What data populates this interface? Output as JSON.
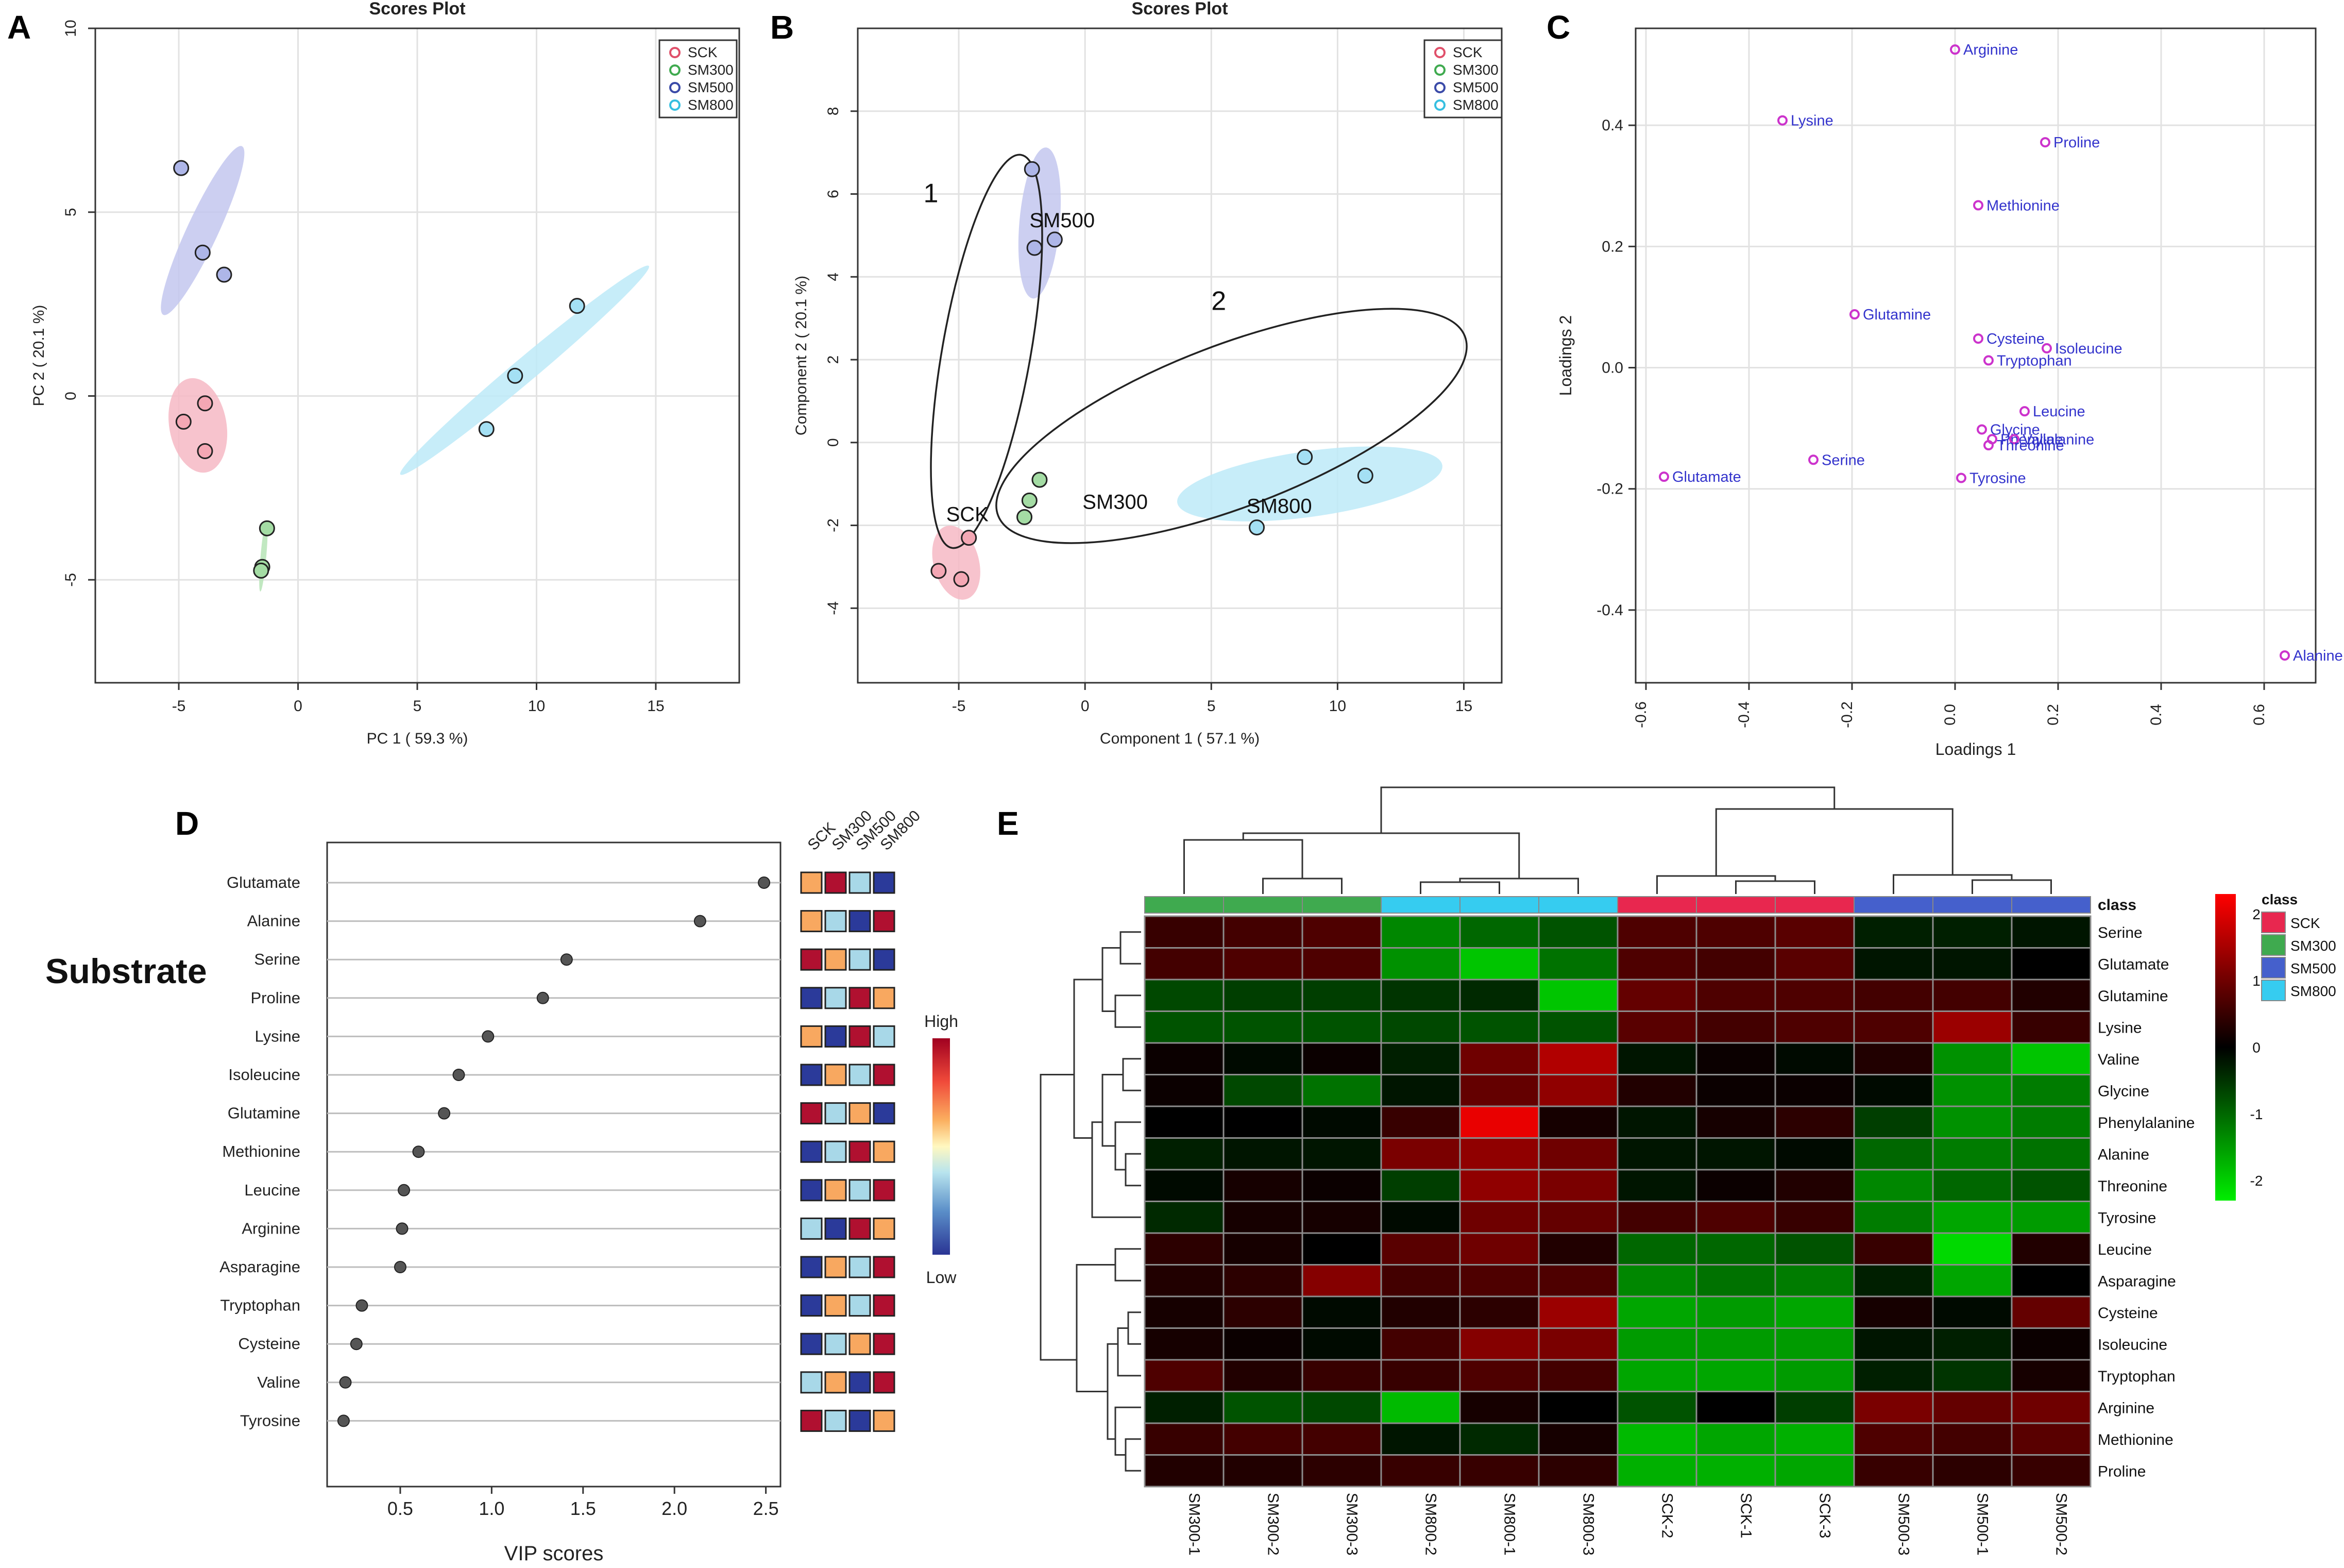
{
  "panel_labels": [
    "A",
    "B",
    "C",
    "D",
    "E"
  ],
  "legend_groups": [
    "SCK",
    "SM300",
    "SM500",
    "SM800"
  ],
  "colors": {
    "SCK_pt": "#f4a7b4",
    "SCK_ell": "#f6b8c4",
    "SM300_pt": "#a4dca4",
    "SM300_ell": "#b6e4b6",
    "SM500_pt": "#aeb6e8",
    "SM500_ell": "#c3c7ee",
    "SM800_pt": "#a4e0f4",
    "SM800_ell": "#bdeaf8",
    "loading_pt": "#cc33cc",
    "loading_text": "#3333cc",
    "heat_low": "#00ee00",
    "heat_mid": "#000000",
    "heat_high": "#ff0000",
    "class_SCK": "#e8274f",
    "class_SM300": "#3faa4f",
    "class_SM500": "#4560cc",
    "class_SM800": "#36ccf0",
    "vip_low": "#2b3a9a",
    "vip_midlow": "#a8d8e8",
    "vip_midhigh": "#f8a860",
    "vip_high": "#b01030"
  },
  "chart_data": [
    {
      "id": "A",
      "type": "scatter",
      "title": "Scores Plot",
      "xlabel": "PC 1 ( 59.3 %)",
      "ylabel": "PC 2 ( 20.1 %)",
      "xlim": [
        -8.5,
        18.5
      ],
      "ylim": [
        -7.8,
        10
      ],
      "xticks": [
        -5,
        0,
        5,
        10,
        15
      ],
      "yticks": [
        -5,
        0,
        5,
        10
      ],
      "legend": [
        "SCK",
        "SM300",
        "SM500",
        "SM800"
      ],
      "series": [
        {
          "name": "SCK",
          "points": [
            [
              -3.9,
              -0.2
            ],
            [
              -4.8,
              -0.7
            ],
            [
              -3.9,
              -1.5
            ]
          ]
        },
        {
          "name": "SM300",
          "points": [
            [
              -1.3,
              -3.6
            ],
            [
              -1.5,
              -4.65
            ],
            [
              -1.55,
              -4.75
            ]
          ]
        },
        {
          "name": "SM500",
          "points": [
            [
              -4.9,
              6.2
            ],
            [
              -4.0,
              3.9
            ],
            [
              -3.1,
              3.3
            ]
          ]
        },
        {
          "name": "SM800",
          "points": [
            [
              11.7,
              2.45
            ],
            [
              9.1,
              0.55
            ],
            [
              7.9,
              -0.9
            ]
          ]
        }
      ],
      "ellipses": [
        {
          "name": "SCK",
          "cx": -4.2,
          "cy": -0.8,
          "rx": 2.0,
          "ry": 1.2,
          "angle": -80
        },
        {
          "name": "SM300",
          "cx": -1.45,
          "cy": -4.35,
          "rx": 1.5,
          "ry": 0.12,
          "angle": 85
        },
        {
          "name": "SM500",
          "cx": -4.0,
          "cy": 4.5,
          "rx": 3.9,
          "ry": 0.65,
          "angle": 65
        },
        {
          "name": "SM800",
          "cx": 9.5,
          "cy": 0.7,
          "rx": 6.8,
          "ry": 0.5,
          "angle": 40
        }
      ]
    },
    {
      "id": "B",
      "type": "scatter",
      "title": "Scores Plot",
      "xlabel": "Component 1 ( 57.1 %)",
      "ylabel": "Component 2 ( 20.1 %)",
      "xlim": [
        -9,
        16.5
      ],
      "ylim": [
        -5.8,
        10
      ],
      "xticks": [
        -5,
        0,
        5,
        10,
        15
      ],
      "yticks": [
        -4,
        -2,
        0,
        2,
        4,
        6,
        8
      ],
      "legend": [
        "SCK",
        "SM300",
        "SM500",
        "SM800"
      ],
      "series": [
        {
          "name": "SCK",
          "points": [
            [
              -4.6,
              -2.3
            ],
            [
              -5.8,
              -3.1
            ],
            [
              -4.9,
              -3.3
            ]
          ]
        },
        {
          "name": "SM300",
          "points": [
            [
              -1.8,
              -0.9
            ],
            [
              -2.2,
              -1.4
            ],
            [
              -2.4,
              -1.8
            ]
          ]
        },
        {
          "name": "SM500",
          "points": [
            [
              -2.1,
              6.6
            ],
            [
              -1.2,
              4.9
            ],
            [
              -2.0,
              4.7
            ]
          ]
        },
        {
          "name": "SM800",
          "points": [
            [
              8.7,
              -0.35
            ],
            [
              11.1,
              -0.8
            ],
            [
              6.8,
              -2.05
            ]
          ]
        }
      ],
      "ellipses": [
        {
          "name": "SCK",
          "cx": -5.1,
          "cy": -2.9,
          "rx": 1.5,
          "ry": 0.9,
          "angle": -75
        },
        {
          "name": "SM500",
          "cx": -1.8,
          "cy": 5.3,
          "rx": 3.0,
          "ry": 0.8,
          "angle": 85
        },
        {
          "name": "SM800",
          "cx": 8.9,
          "cy": -1.0,
          "rx": 5.3,
          "ry": 1.3,
          "angle": 8
        }
      ],
      "annotations": [
        {
          "text": "1",
          "x": -6.4,
          "y": 5.8
        },
        {
          "text": "2",
          "x": 5.0,
          "y": 3.2
        },
        {
          "text": "SM500",
          "x": -2.2,
          "y": 5.2
        },
        {
          "text": "SCK",
          "x": -5.5,
          "y": -1.9
        },
        {
          "text": "SM300",
          "x": -0.1,
          "y": -1.6
        },
        {
          "text": "SM800",
          "x": 6.4,
          "y": -1.7
        }
      ],
      "cluster_outlines": [
        {
          "label": "1",
          "cx": -3.9,
          "cy": 2.2,
          "rx": 7.9,
          "ry": 1.75,
          "angle": 80
        },
        {
          "label": "2",
          "cx": 5.8,
          "cy": 0.4,
          "rx": 9.9,
          "ry": 3.2,
          "angle": 21
        }
      ]
    },
    {
      "id": "C",
      "type": "scatter",
      "title": "",
      "xlabel": "Loadings 1",
      "ylabel": "Loadings 2",
      "xlim": [
        -0.62,
        0.7
      ],
      "ylim": [
        -0.52,
        0.56
      ],
      "xticks": [
        -0.6,
        -0.4,
        -0.2,
        0.0,
        0.2,
        0.4,
        0.6
      ],
      "yticks": [
        -0.4,
        -0.2,
        0.0,
        0.2,
        0.4
      ],
      "points": [
        {
          "label": "Arginine",
          "x": 0.0,
          "y": 0.525
        },
        {
          "label": "Lysine",
          "x": -0.335,
          "y": 0.408
        },
        {
          "label": "Proline",
          "x": 0.175,
          "y": 0.372
        },
        {
          "label": "Methionine",
          "x": 0.045,
          "y": 0.268
        },
        {
          "label": "Glutamine",
          "x": -0.195,
          "y": 0.088
        },
        {
          "label": "Cysteine",
          "x": 0.045,
          "y": 0.048
        },
        {
          "label": "Isoleucine",
          "x": 0.178,
          "y": 0.032
        },
        {
          "label": "Tryptophan",
          "x": 0.065,
          "y": 0.012
        },
        {
          "label": "Leucine",
          "x": 0.135,
          "y": -0.072
        },
        {
          "label": "Glycine",
          "x": 0.052,
          "y": -0.102
        },
        {
          "label": "Phenylalanine",
          "x": 0.072,
          "y": -0.118
        },
        {
          "label": "Valine",
          "x": 0.115,
          "y": -0.118
        },
        {
          "label": "Threonine",
          "x": 0.065,
          "y": -0.128
        },
        {
          "label": "Serine",
          "x": -0.275,
          "y": -0.152
        },
        {
          "label": "Tyrosine",
          "x": 0.012,
          "y": -0.182
        },
        {
          "label": "Glutamate",
          "x": -0.565,
          "y": -0.18
        },
        {
          "label": "Alanine",
          "x": 0.64,
          "y": -0.475
        }
      ]
    },
    {
      "id": "D",
      "type": "scatter",
      "title": "",
      "side_label": "Substrate",
      "xlabel": "VIP scores",
      "xlim": [
        0.1,
        2.58
      ],
      "xticks": [
        0.5,
        1.0,
        1.5,
        2.0,
        2.5
      ],
      "xticklabels": [
        "0.5",
        "1.0",
        "1.5",
        "2.0",
        "2.5"
      ],
      "columns": [
        "SCK",
        "SM300",
        "SM500",
        "SM800"
      ],
      "colorbar": {
        "high": "High",
        "low": "Low"
      },
      "rows": [
        {
          "label": "Glutamate",
          "vip": 2.49,
          "levels": [
            3,
            4,
            2,
            1
          ]
        },
        {
          "label": "Alanine",
          "vip": 2.14,
          "levels": [
            3,
            2,
            1,
            4
          ]
        },
        {
          "label": "Serine",
          "vip": 1.41,
          "levels": [
            4,
            3,
            2,
            1
          ]
        },
        {
          "label": "Proline",
          "vip": 1.28,
          "levels": [
            1,
            2,
            4,
            3
          ]
        },
        {
          "label": "Lysine",
          "vip": 0.98,
          "levels": [
            3,
            1,
            4,
            2
          ]
        },
        {
          "label": "Isoleucine",
          "vip": 0.82,
          "levels": [
            1,
            3,
            2,
            4
          ]
        },
        {
          "label": "Glutamine",
          "vip": 0.74,
          "levels": [
            4,
            2,
            3,
            1
          ]
        },
        {
          "label": "Methionine",
          "vip": 0.6,
          "levels": [
            1,
            2,
            4,
            3
          ]
        },
        {
          "label": "Leucine",
          "vip": 0.52,
          "levels": [
            1,
            3,
            2,
            4
          ]
        },
        {
          "label": "Arginine",
          "vip": 0.51,
          "levels": [
            2,
            1,
            4,
            3
          ]
        },
        {
          "label": "Asparagine",
          "vip": 0.5,
          "levels": [
            1,
            3,
            2,
            4
          ]
        },
        {
          "label": "Tryptophan",
          "vip": 0.29,
          "levels": [
            1,
            3,
            2,
            4
          ]
        },
        {
          "label": "Cysteine",
          "vip": 0.26,
          "levels": [
            1,
            2,
            3,
            4
          ]
        },
        {
          "label": "Valine",
          "vip": 0.2,
          "levels": [
            2,
            3,
            1,
            4
          ]
        },
        {
          "label": "Tyrosine",
          "vip": 0.19,
          "levels": [
            4,
            2,
            1,
            3
          ]
        }
      ]
    },
    {
      "id": "E",
      "type": "heatmap",
      "title": "",
      "columns": [
        "SM300-1",
        "SM300-2",
        "SM300-3",
        "SM800-2",
        "SM800-1",
        "SM800-3",
        "SCK-2",
        "SCK-1",
        "SCK-3",
        "SM500-3",
        "SM500-1",
        "SM500-2"
      ],
      "column_class": [
        "SM300",
        "SM300",
        "SM300",
        "SM800",
        "SM800",
        "SM800",
        "SCK",
        "SCK",
        "SCK",
        "SM500",
        "SM500",
        "SM500"
      ],
      "class_label": "class",
      "legend_title": "class",
      "legend": [
        "SCK",
        "SM300",
        "SM500",
        "SM800"
      ],
      "colorbar_ticks": [
        2,
        1,
        0,
        -1,
        -2
      ],
      "colorbar_range": [
        -2.3,
        2.3
      ],
      "rows": [
        "Serine",
        "Glutamate",
        "Glutamine",
        "Lysine",
        "Valine",
        "Glycine",
        "Phenylalanine",
        "Alanine",
        "Threonine",
        "Tyrosine",
        "Leucine",
        "Asparagine",
        "Cysteine",
        "Isoleucine",
        "Tryptophan",
        "Arginine",
        "Methionine",
        "Proline"
      ],
      "values": [
        [
          0.5,
          0.6,
          0.7,
          -1.3,
          -1.0,
          -0.8,
          0.7,
          0.7,
          0.8,
          -0.3,
          -0.3,
          -0.2
        ],
        [
          0.6,
          0.7,
          0.7,
          -1.4,
          -1.9,
          -1.1,
          0.7,
          0.6,
          0.8,
          -0.2,
          -0.2,
          0.0
        ],
        [
          -0.7,
          -0.6,
          -0.6,
          -0.5,
          -0.4,
          -1.9,
          0.9,
          0.7,
          0.7,
          0.6,
          0.6,
          0.3
        ],
        [
          -0.8,
          -0.8,
          -0.8,
          -0.7,
          -0.8,
          -0.8,
          0.8,
          0.6,
          0.7,
          0.7,
          1.4,
          0.5
        ],
        [
          0.1,
          -0.1,
          0.1,
          -0.3,
          1.0,
          1.6,
          -0.2,
          0.1,
          -0.1,
          0.3,
          -1.4,
          -1.9
        ],
        [
          0.1,
          -0.7,
          -1.1,
          -0.2,
          0.9,
          1.3,
          0.3,
          0.1,
          0.1,
          -0.1,
          -1.4,
          -1.2
        ],
        [
          0.0,
          0.0,
          -0.1,
          0.5,
          2.1,
          0.2,
          -0.2,
          0.2,
          0.4,
          -0.6,
          -1.4,
          -1.2
        ],
        [
          -0.3,
          -0.2,
          -0.2,
          1.1,
          1.3,
          1.0,
          -0.2,
          -0.2,
          -0.1,
          -1.0,
          -1.2,
          -1.1
        ],
        [
          -0.1,
          0.2,
          0.1,
          -0.6,
          1.3,
          1.1,
          -0.2,
          0.1,
          0.3,
          -1.3,
          -1.0,
          -0.8
        ],
        [
          -0.4,
          0.2,
          0.2,
          -0.1,
          1.0,
          0.9,
          0.6,
          0.7,
          0.5,
          -1.2,
          -1.6,
          -1.5
        ],
        [
          0.4,
          0.2,
          0.0,
          0.8,
          1.0,
          0.3,
          -1.0,
          -1.0,
          -0.8,
          0.5,
          -2.1,
          0.3
        ],
        [
          0.3,
          0.4,
          1.2,
          0.6,
          0.7,
          0.7,
          -1.3,
          -1.1,
          -1.2,
          -0.3,
          -1.6,
          0.0
        ],
        [
          0.2,
          0.4,
          -0.1,
          0.3,
          0.4,
          1.4,
          -1.6,
          -1.5,
          -1.6,
          0.2,
          -0.1,
          0.9
        ],
        [
          0.2,
          0.1,
          -0.1,
          0.6,
          1.2,
          1.1,
          -1.5,
          -1.5,
          -1.5,
          -0.2,
          -0.3,
          0.1
        ],
        [
          0.7,
          0.3,
          0.5,
          0.5,
          0.7,
          0.6,
          -1.6,
          -1.6,
          -1.5,
          -0.3,
          -0.5,
          0.2
        ],
        [
          -0.3,
          -0.8,
          -0.7,
          -1.8,
          0.2,
          0.0,
          -0.8,
          0.0,
          -0.6,
          1.1,
          0.9,
          1.0
        ],
        [
          0.5,
          0.6,
          0.6,
          -0.2,
          -0.4,
          0.2,
          -1.8,
          -1.6,
          -1.7,
          0.7,
          0.6,
          0.8
        ],
        [
          0.3,
          0.3,
          0.4,
          0.5,
          0.5,
          0.4,
          -1.7,
          -1.7,
          -1.6,
          0.5,
          0.4,
          0.5
        ]
      ]
    }
  ]
}
